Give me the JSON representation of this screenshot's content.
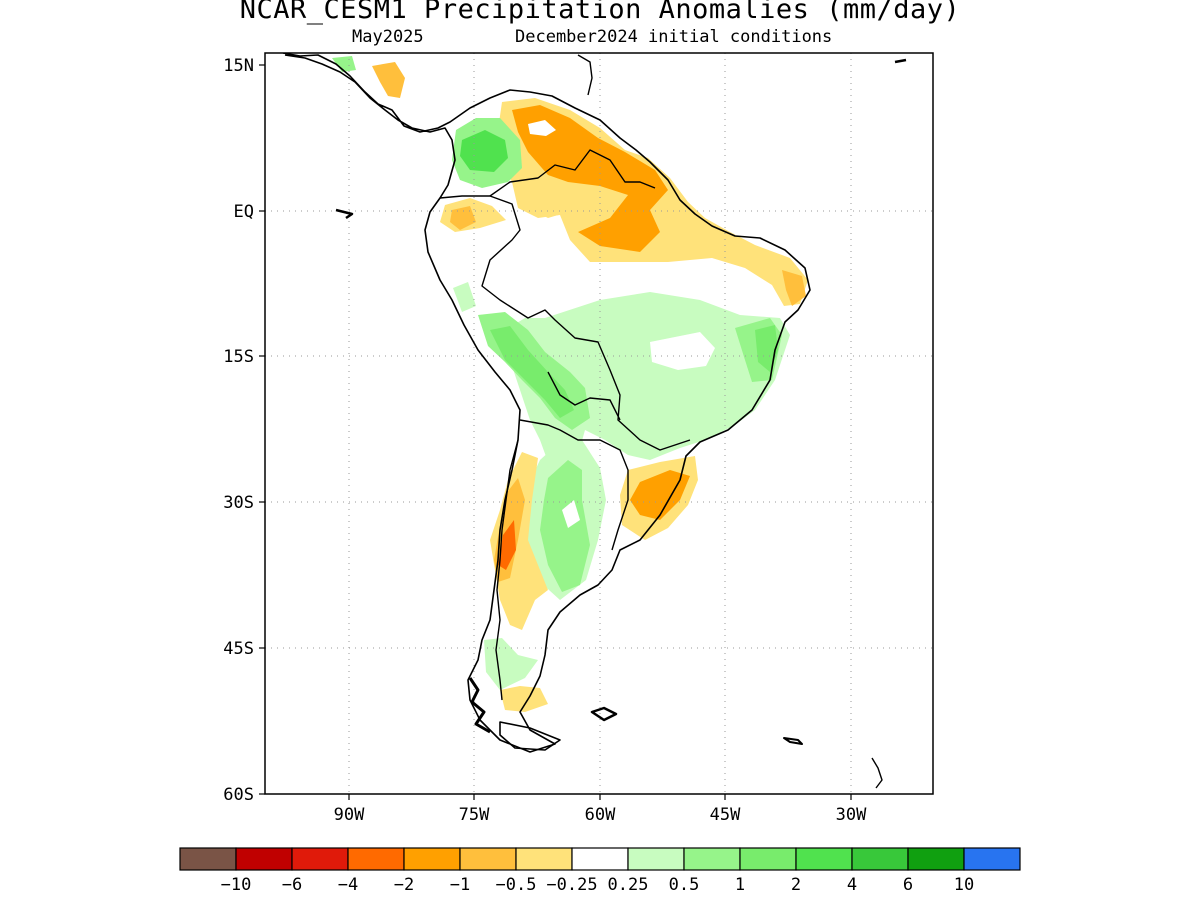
{
  "title": "NCAR_CESM1 Precipitation Anomalies (mm/day)",
  "subtitle_month": "May2025",
  "subtitle_init": "December2024 initial conditions",
  "map": {
    "lon_range": [
      -100,
      -20
    ],
    "lat_range": [
      -60,
      15
    ],
    "lat_ticks": [
      {
        "value": 15,
        "label": "15N"
      },
      {
        "value": 0,
        "label": "EQ"
      },
      {
        "value": -15,
        "label": "15S"
      },
      {
        "value": -30,
        "label": "30S"
      },
      {
        "value": -45,
        "label": "45S"
      },
      {
        "value": -60,
        "label": "60S"
      }
    ],
    "lon_ticks": [
      {
        "value": -90,
        "label": "90W"
      },
      {
        "value": -75,
        "label": "75W"
      },
      {
        "value": -60,
        "label": "60W"
      },
      {
        "value": -45,
        "label": "45W"
      },
      {
        "value": -30,
        "label": "30W"
      }
    ],
    "grid": "dotted"
  },
  "colorbar": {
    "colors": [
      "#7a5446",
      "#c00000",
      "#e01a0a",
      "#ff6a00",
      "#ffa000",
      "#ffbf3c",
      "#ffe27a",
      "#ffffff",
      "#c8fcc0",
      "#96f48a",
      "#78ec6c",
      "#50e24e",
      "#38c83a",
      "#10a010",
      "#2874f0"
    ],
    "labels": [
      "-10",
      "-6",
      "-4",
      "-2",
      "-1",
      "-0.5",
      "-0.25",
      "0.25",
      "0.5",
      "1",
      "2",
      "4",
      "6",
      "10"
    ]
  }
}
